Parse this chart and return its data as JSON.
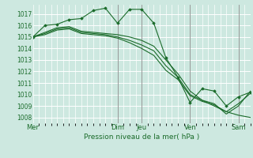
{
  "bg_color": "#cde8e0",
  "grid_color": "#b8ddd5",
  "line_color": "#1a6b2a",
  "marker_color": "#1a6b2a",
  "xlabel": "Pression niveau de la mer( hPa )",
  "ylim": [
    1007.5,
    1017.8
  ],
  "yticks": [
    1008,
    1009,
    1010,
    1011,
    1012,
    1013,
    1014,
    1015,
    1016,
    1017
  ],
  "day_labels": [
    "Mer",
    "Dim",
    "Jeu",
    "Ven",
    "Sam"
  ],
  "day_positions": [
    0.0,
    3.5,
    4.5,
    6.5,
    8.5
  ],
  "vline_positions": [
    3.5,
    4.5,
    6.5,
    8.5
  ],
  "xlim": [
    0,
    9.0
  ],
  "series": [
    {
      "x": [
        0,
        0.5,
        1.0,
        1.5,
        2.0,
        2.5,
        3.0,
        3.5,
        4.0,
        4.5,
        5.0,
        5.5,
        6.0,
        6.5,
        7.0,
        7.5,
        8.0,
        8.5,
        9.0
      ],
      "y": [
        1015.0,
        1016.0,
        1016.1,
        1016.5,
        1016.6,
        1017.3,
        1017.5,
        1016.2,
        1017.4,
        1017.4,
        1016.2,
        1013.2,
        1011.5,
        1009.3,
        1010.5,
        1010.3,
        1009.0,
        1009.8,
        1010.2
      ],
      "has_markers": true
    },
    {
      "x": [
        0,
        0.5,
        1.0,
        1.5,
        2.0,
        2.5,
        3.0,
        3.5,
        4.0,
        4.5,
        5.0,
        5.5,
        6.0,
        6.5,
        7.0,
        7.5,
        8.0,
        8.5,
        9.0
      ],
      "y": [
        1015.0,
        1015.4,
        1015.8,
        1015.9,
        1015.5,
        1015.4,
        1015.3,
        1015.2,
        1015.0,
        1014.7,
        1014.2,
        1013.0,
        1011.8,
        1010.3,
        1009.5,
        1009.0,
        1008.5,
        1008.2,
        1008.0
      ],
      "has_markers": false
    },
    {
      "x": [
        0,
        0.5,
        1.0,
        1.5,
        2.0,
        2.5,
        3.0,
        3.5,
        4.0,
        4.5,
        5.0,
        5.5,
        6.0,
        6.5,
        7.0,
        7.5,
        8.0,
        8.5,
        9.0
      ],
      "y": [
        1015.0,
        1015.3,
        1015.7,
        1015.8,
        1015.4,
        1015.3,
        1015.2,
        1015.0,
        1014.7,
        1014.3,
        1013.8,
        1012.5,
        1011.5,
        1010.0,
        1009.5,
        1009.2,
        1008.3,
        1009.0,
        1010.3
      ],
      "has_markers": false
    },
    {
      "x": [
        0,
        0.5,
        1.0,
        1.5,
        2.0,
        2.5,
        3.0,
        3.5,
        4.0,
        4.5,
        5.0,
        5.5,
        6.0,
        6.5,
        7.0,
        7.5,
        8.0,
        8.5,
        9.0
      ],
      "y": [
        1015.0,
        1015.2,
        1015.6,
        1015.7,
        1015.3,
        1015.2,
        1015.1,
        1014.9,
        1014.5,
        1014.0,
        1013.4,
        1012.1,
        1011.3,
        1009.9,
        1009.4,
        1009.1,
        1008.5,
        1009.2,
        1010.1
      ],
      "has_markers": false
    }
  ],
  "figsize": [
    3.2,
    2.0
  ],
  "dpi": 100
}
